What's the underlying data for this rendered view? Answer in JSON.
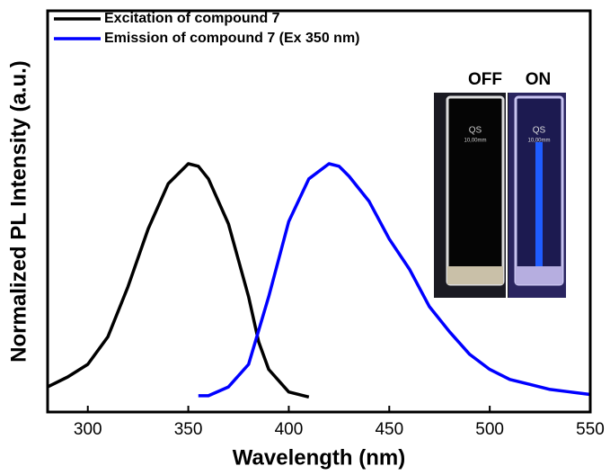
{
  "chart_data": {
    "type": "line",
    "x_label": "Wavelength (nm)",
    "y_label": "Normalized PL Intensity (a.u.)",
    "xlim": [
      280,
      550
    ],
    "xticks": [
      300,
      350,
      400,
      450,
      500,
      550
    ],
    "ylim": [
      0,
      1.6
    ],
    "series": [
      {
        "name": "Excitation of compound 7",
        "color": "#000000",
        "x": [
          280,
          290,
          300,
          310,
          320,
          330,
          340,
          350,
          355,
          360,
          370,
          380,
          385,
          390,
          400,
          410
        ],
        "values": [
          0.1,
          0.14,
          0.19,
          0.3,
          0.5,
          0.73,
          0.91,
          0.99,
          0.98,
          0.93,
          0.75,
          0.46,
          0.28,
          0.17,
          0.08,
          0.06
        ]
      },
      {
        "name": "Emission of compound 7 (Ex 350 nm)",
        "color": "#0000ff",
        "x": [
          355,
          360,
          370,
          380,
          390,
          400,
          410,
          420,
          425,
          430,
          440,
          450,
          460,
          470,
          480,
          490,
          500,
          510,
          520,
          530,
          540,
          550
        ],
        "values": [
          0.065,
          0.065,
          0.1,
          0.19,
          0.46,
          0.76,
          0.93,
          0.99,
          0.98,
          0.94,
          0.84,
          0.69,
          0.57,
          0.42,
          0.32,
          0.23,
          0.17,
          0.13,
          0.11,
          0.09,
          0.08,
          0.07
        ]
      }
    ],
    "inset": {
      "labels": [
        "OFF",
        "ON"
      ],
      "cuvette_text": [
        "QS",
        "10,00mm"
      ]
    }
  }
}
